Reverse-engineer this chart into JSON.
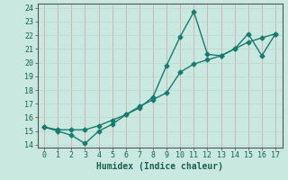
{
  "x": [
    0,
    1,
    2,
    3,
    4,
    5,
    6,
    7,
    8,
    9,
    10,
    11,
    12,
    13,
    14,
    15,
    16,
    17
  ],
  "line1_y": [
    15.3,
    15.0,
    14.7,
    14.1,
    15.0,
    15.5,
    16.2,
    16.7,
    17.5,
    19.8,
    21.9,
    23.7,
    20.6,
    20.5,
    21.0,
    22.1,
    20.5,
    22.1
  ],
  "line2_y": [
    15.3,
    15.1,
    15.1,
    15.1,
    15.4,
    15.8,
    16.2,
    16.8,
    17.3,
    17.8,
    19.3,
    19.9,
    20.2,
    20.5,
    21.0,
    21.5,
    21.8,
    22.1
  ],
  "line_color": "#1a7a6e",
  "bg_color": "#c8e8e0",
  "plot_bg": "#c8e8e0",
  "grid_color": "#b0d4cc",
  "xlabel": "Humidex (Indice chaleur)",
  "ylim": [
    13.8,
    24.3
  ],
  "xlim": [
    -0.5,
    17.5
  ],
  "yticks": [
    14,
    15,
    16,
    17,
    18,
    19,
    20,
    21,
    22,
    23,
    24
  ],
  "xticks": [
    0,
    1,
    2,
    3,
    4,
    5,
    6,
    7,
    8,
    9,
    10,
    11,
    12,
    13,
    14,
    15,
    16,
    17
  ],
  "marker": "D",
  "markersize": 2.5,
  "linewidth": 1.0,
  "xlabel_fontsize": 7,
  "tick_fontsize": 6
}
